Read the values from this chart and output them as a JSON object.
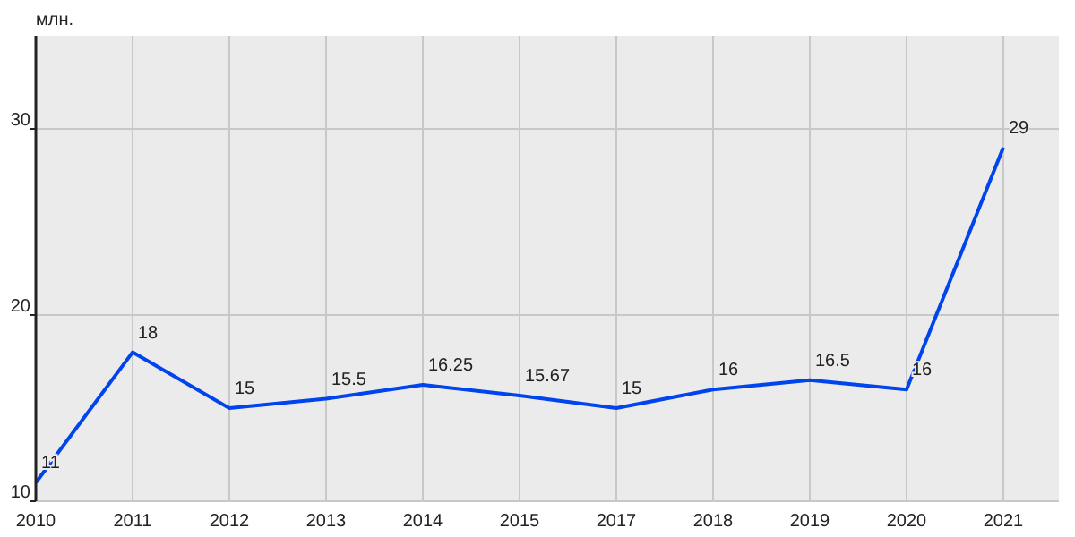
{
  "chart_data": {
    "type": "line",
    "ylabel": "млн.",
    "categories": [
      "2010",
      "2011",
      "2012",
      "2013",
      "2014",
      "2015",
      "2017",
      "2018",
      "2019",
      "2020",
      "2021"
    ],
    "series": [
      {
        "color": "#0044ee",
        "values": [
          11,
          18,
          15,
          15.5,
          16.25,
          15.67,
          15,
          16,
          16.5,
          16,
          29
        ]
      }
    ],
    "ylim": [
      10,
      35
    ],
    "yticks": [
      10,
      20,
      30
    ],
    "grid": true,
    "data_labels": true,
    "marker": "none",
    "line_style": "solid"
  }
}
